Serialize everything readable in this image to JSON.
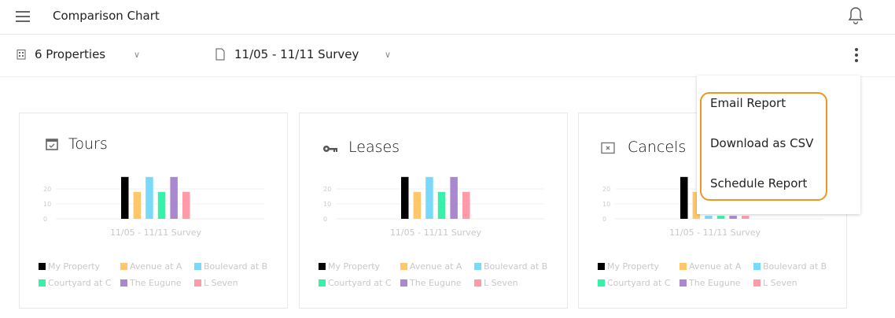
{
  "header": {
    "title": "Comparison Chart"
  },
  "toolbar": {
    "properties_label": "6 Properties",
    "survey_label": "11/05 - 11/11 Survey"
  },
  "menu": {
    "items": [
      "Email Report",
      "Download as CSV",
      "Schedule Report"
    ],
    "highlight_color": "#f0961e"
  },
  "legend": [
    {
      "name": "My Property",
      "color": "#000000"
    },
    {
      "name": "Avenue at A",
      "color": "#ffc76b"
    },
    {
      "name": "Boulevard at B",
      "color": "#79d9fb"
    },
    {
      "name": "Courtyard at C",
      "color": "#35f1a9"
    },
    {
      "name": "The Eugune",
      "color": "#a988d0"
    },
    {
      "name": "L Seven",
      "color": "#ff9aa8"
    }
  ],
  "chart_data": [
    {
      "type": "bar",
      "title": "Tours",
      "icon": "calendar-check-icon",
      "categories": [
        "11/05 - 11/11 Survey"
      ],
      "yticks": [
        0,
        10,
        20
      ],
      "ylim": [
        0,
        30
      ],
      "series": [
        {
          "name": "My Property",
          "values": [
            28
          ]
        },
        {
          "name": "Avenue at A",
          "values": [
            18
          ]
        },
        {
          "name": "Boulevard at B",
          "values": [
            28
          ]
        },
        {
          "name": "Courtyard at C",
          "values": [
            18
          ]
        },
        {
          "name": "The Eugune",
          "values": [
            28
          ]
        },
        {
          "name": "L Seven",
          "values": [
            18
          ]
        }
      ]
    },
    {
      "type": "bar",
      "title": "Leases",
      "icon": "key-icon",
      "categories": [
        "11/05 - 11/11 Survey"
      ],
      "yticks": [
        0,
        10,
        20
      ],
      "ylim": [
        0,
        30
      ],
      "series": [
        {
          "name": "My Property",
          "values": [
            28
          ]
        },
        {
          "name": "Avenue at A",
          "values": [
            18
          ]
        },
        {
          "name": "Boulevard at B",
          "values": [
            28
          ]
        },
        {
          "name": "Courtyard at C",
          "values": [
            18
          ]
        },
        {
          "name": "The Eugune",
          "values": [
            28
          ]
        },
        {
          "name": "L Seven",
          "values": [
            18
          ]
        }
      ]
    },
    {
      "type": "bar",
      "title": "Cancels",
      "icon": "cancel-box-icon",
      "categories": [
        "11/05 - 11/11 Survey"
      ],
      "yticks": [
        0,
        10,
        20
      ],
      "ylim": [
        0,
        30
      ],
      "series": [
        {
          "name": "My Property",
          "values": [
            28
          ]
        },
        {
          "name": "Avenue at A",
          "values": [
            18
          ]
        },
        {
          "name": "Boulevard at B",
          "values": [
            2
          ]
        },
        {
          "name": "Courtyard at C",
          "values": [
            2
          ]
        },
        {
          "name": "The Eugune",
          "values": [
            2
          ]
        },
        {
          "name": "L Seven",
          "values": [
            2
          ]
        }
      ]
    }
  ]
}
